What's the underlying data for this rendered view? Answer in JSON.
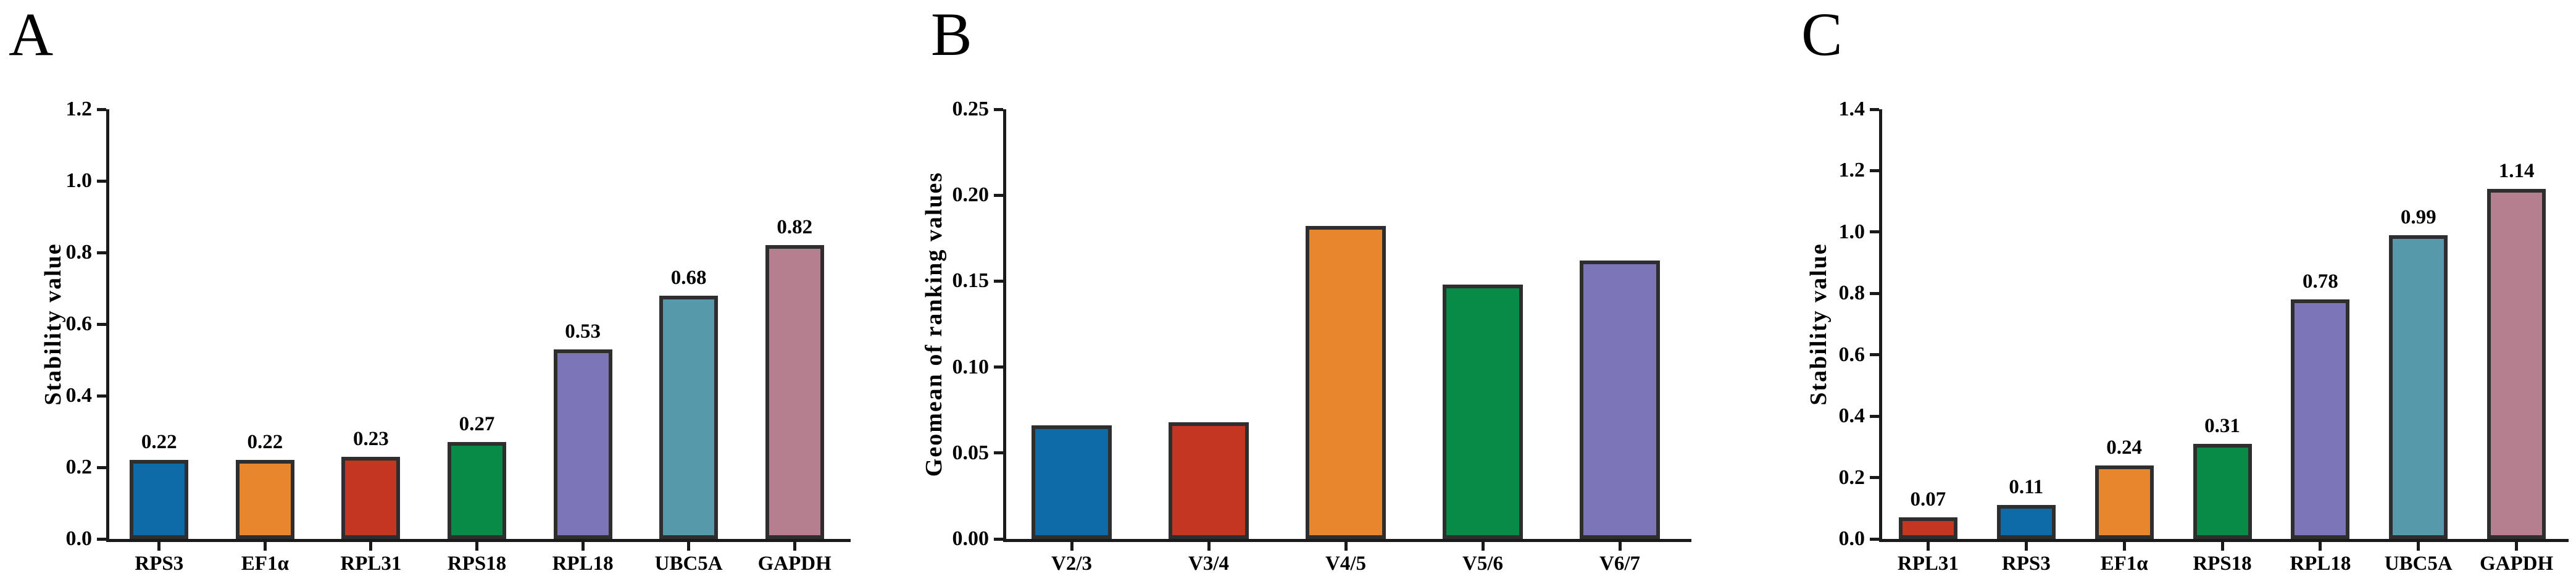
{
  "figure": {
    "background": "#FFFFFF",
    "axis_color": "#1A1A1A",
    "bar_border_color": "#2E2E2E",
    "text_color": "#000000"
  },
  "chart_data": [
    {
      "panel_label": "A",
      "type": "bar",
      "title": "",
      "xlabel": "",
      "ylabel": "Stability value",
      "ylim": [
        0,
        1.2
      ],
      "yticks": [
        "0.0",
        "0.2",
        "0.4",
        "0.6",
        "0.8",
        "1.0",
        "1.2"
      ],
      "grid": false,
      "legend_position": "none",
      "categories": [
        "RPS3",
        "EF1α",
        "RPL31",
        "RPS18",
        "RPL18",
        "UBC5A",
        "GAPDH"
      ],
      "values": [
        0.22,
        0.22,
        0.23,
        0.27,
        0.53,
        0.68,
        0.82
      ],
      "bar_labels": [
        "0.22",
        "0.22",
        "0.23",
        "0.27",
        "0.53",
        "0.68",
        "0.82"
      ],
      "colors": [
        "#0F6BA8",
        "#E8862D",
        "#C43522",
        "#078B46",
        "#7D76B6",
        "#5599AA",
        "#B67F90"
      ]
    },
    {
      "panel_label": "B",
      "type": "bar",
      "title": "",
      "xlabel": "",
      "ylabel": "Geomean of ranking values",
      "ylim": [
        0,
        0.25
      ],
      "yticks": [
        "0.00",
        "0.05",
        "0.10",
        "0.15",
        "0.20",
        "0.25"
      ],
      "grid": false,
      "legend_position": "none",
      "categories": [
        "V2/3",
        "V3/4",
        "V4/5",
        "V5/6",
        "V6/7"
      ],
      "values": [
        0.066,
        0.068,
        0.182,
        0.148,
        0.162
      ],
      "bar_labels": [
        "",
        "",
        "",
        "",
        ""
      ],
      "colors": [
        "#0F6BA8",
        "#C43522",
        "#E8862D",
        "#078B46",
        "#7D76B6"
      ]
    },
    {
      "panel_label": "C",
      "type": "bar",
      "title": "",
      "xlabel": "",
      "ylabel": "Stability value",
      "ylim": [
        0,
        1.4
      ],
      "yticks": [
        "0.0",
        "0.2",
        "0.4",
        "0.6",
        "0.8",
        "1.0",
        "1.2",
        "1.4"
      ],
      "grid": false,
      "legend_position": "none",
      "categories": [
        "RPL31",
        "RPS3",
        "EF1α",
        "RPS18",
        "RPL18",
        "UBC5A",
        "GAPDH"
      ],
      "values": [
        0.07,
        0.11,
        0.24,
        0.31,
        0.78,
        0.99,
        1.14
      ],
      "bar_labels": [
        "0.07",
        "0.11",
        "0.24",
        "0.31",
        "0.78",
        "0.99",
        "1.14"
      ],
      "colors": [
        "#C43522",
        "#0F6BA8",
        "#E8862D",
        "#078B46",
        "#7D76B6",
        "#5599AA",
        "#B67F90"
      ]
    }
  ]
}
